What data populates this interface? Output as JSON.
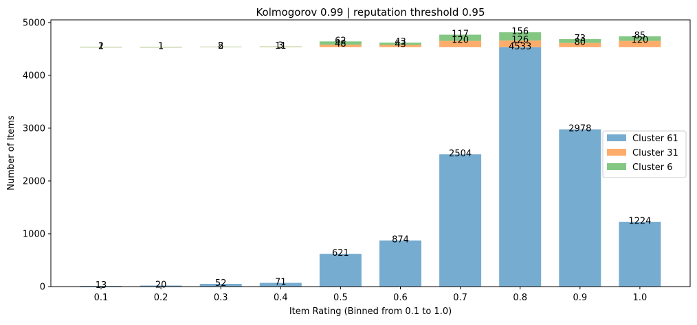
{
  "chart_data": {
    "type": "bar",
    "title": "Kolmogorov 0.99 | reputation threshold 0.95",
    "xlabel": "Item Rating (Binned from 0.1 to 1.0)",
    "ylabel": "Number of Items",
    "categories": [
      "0.1",
      "0.2",
      "0.3",
      "0.4",
      "0.5",
      "0.6",
      "0.7",
      "0.8",
      "0.9",
      "1.0"
    ],
    "ylim": [
      0,
      5050
    ],
    "yticks": [
      0,
      1000,
      2000,
      3000,
      4000,
      5000
    ],
    "grid": false,
    "legend_position": "center-right",
    "overlay_base_value": 4533,
    "series": [
      {
        "name": "Cluster 61",
        "color": "#77acd1",
        "values": [
          13,
          20,
          52,
          71,
          621,
          874,
          2504,
          4533,
          2978,
          1224
        ]
      },
      {
        "name": "Cluster 31",
        "color": "#fdac6b",
        "values": [
          2,
          1,
          8,
          11,
          48,
          43,
          120,
          126,
          80,
          120
        ]
      },
      {
        "name": "Cluster 6",
        "color": "#84c783",
        "values": [
          1,
          1,
          2,
          3,
          62,
          43,
          117,
          156,
          73,
          85
        ]
      }
    ]
  }
}
